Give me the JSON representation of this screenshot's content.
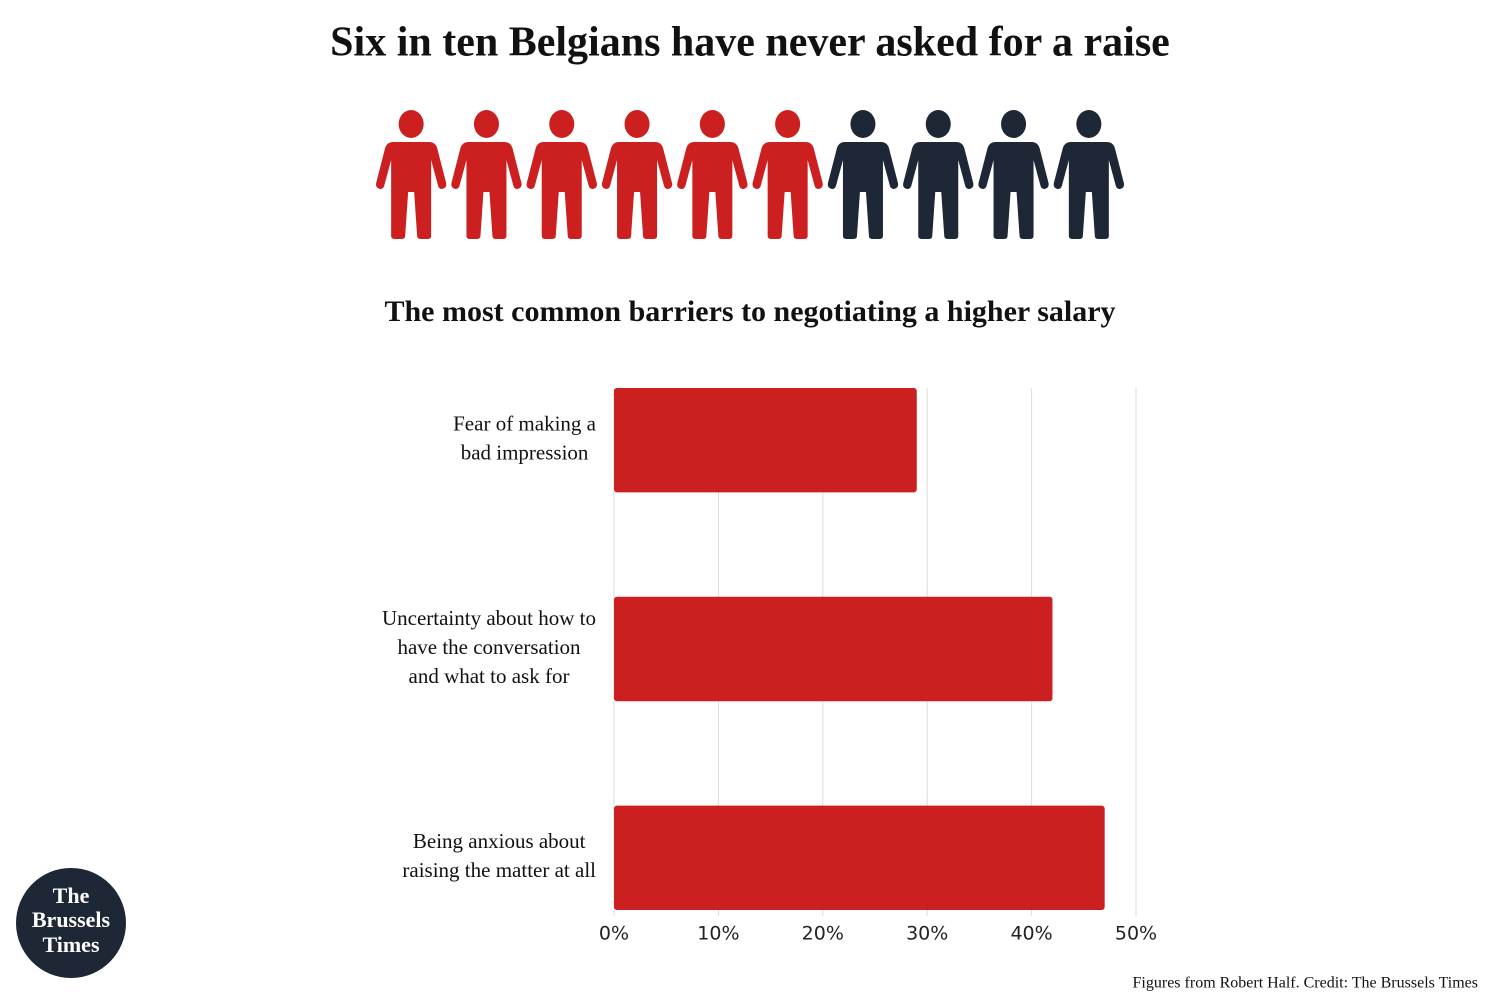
{
  "chart_data": [
    {
      "type": "pictogram",
      "title": "Six in ten Belgians have never asked for a raise",
      "value": 6,
      "total": 10,
      "color": "#cc1f1f",
      "rest_color": "#1e2736"
    },
    {
      "type": "hbar",
      "title": "The most common barriers to negotiating a higher salary",
      "categories": [
        [
          "Fear of making a",
          "bad impression"
        ],
        [
          "Uncertainty about how to",
          "have the conversation",
          "and what to ask for"
        ],
        [
          "Being anxious about",
          "raising the matter at all"
        ]
      ],
      "values": [
        29,
        42,
        47
      ],
      "color": "#cc1f1f",
      "xlim": [
        0,
        50
      ],
      "xticks": [
        {
          "value": 0,
          "label": "0%"
        },
        {
          "value": 10,
          "label": "10%"
        },
        {
          "value": 20,
          "label": "20%"
        },
        {
          "value": 30,
          "label": "30%"
        },
        {
          "value": 40,
          "label": "40%"
        },
        {
          "value": 50,
          "label": "50%"
        }
      ],
      "grid": true
    }
  ],
  "source": "Figures from Robert Half. Credit: The Brussels Times",
  "logo": [
    "The",
    "Brussels",
    "Times"
  ]
}
